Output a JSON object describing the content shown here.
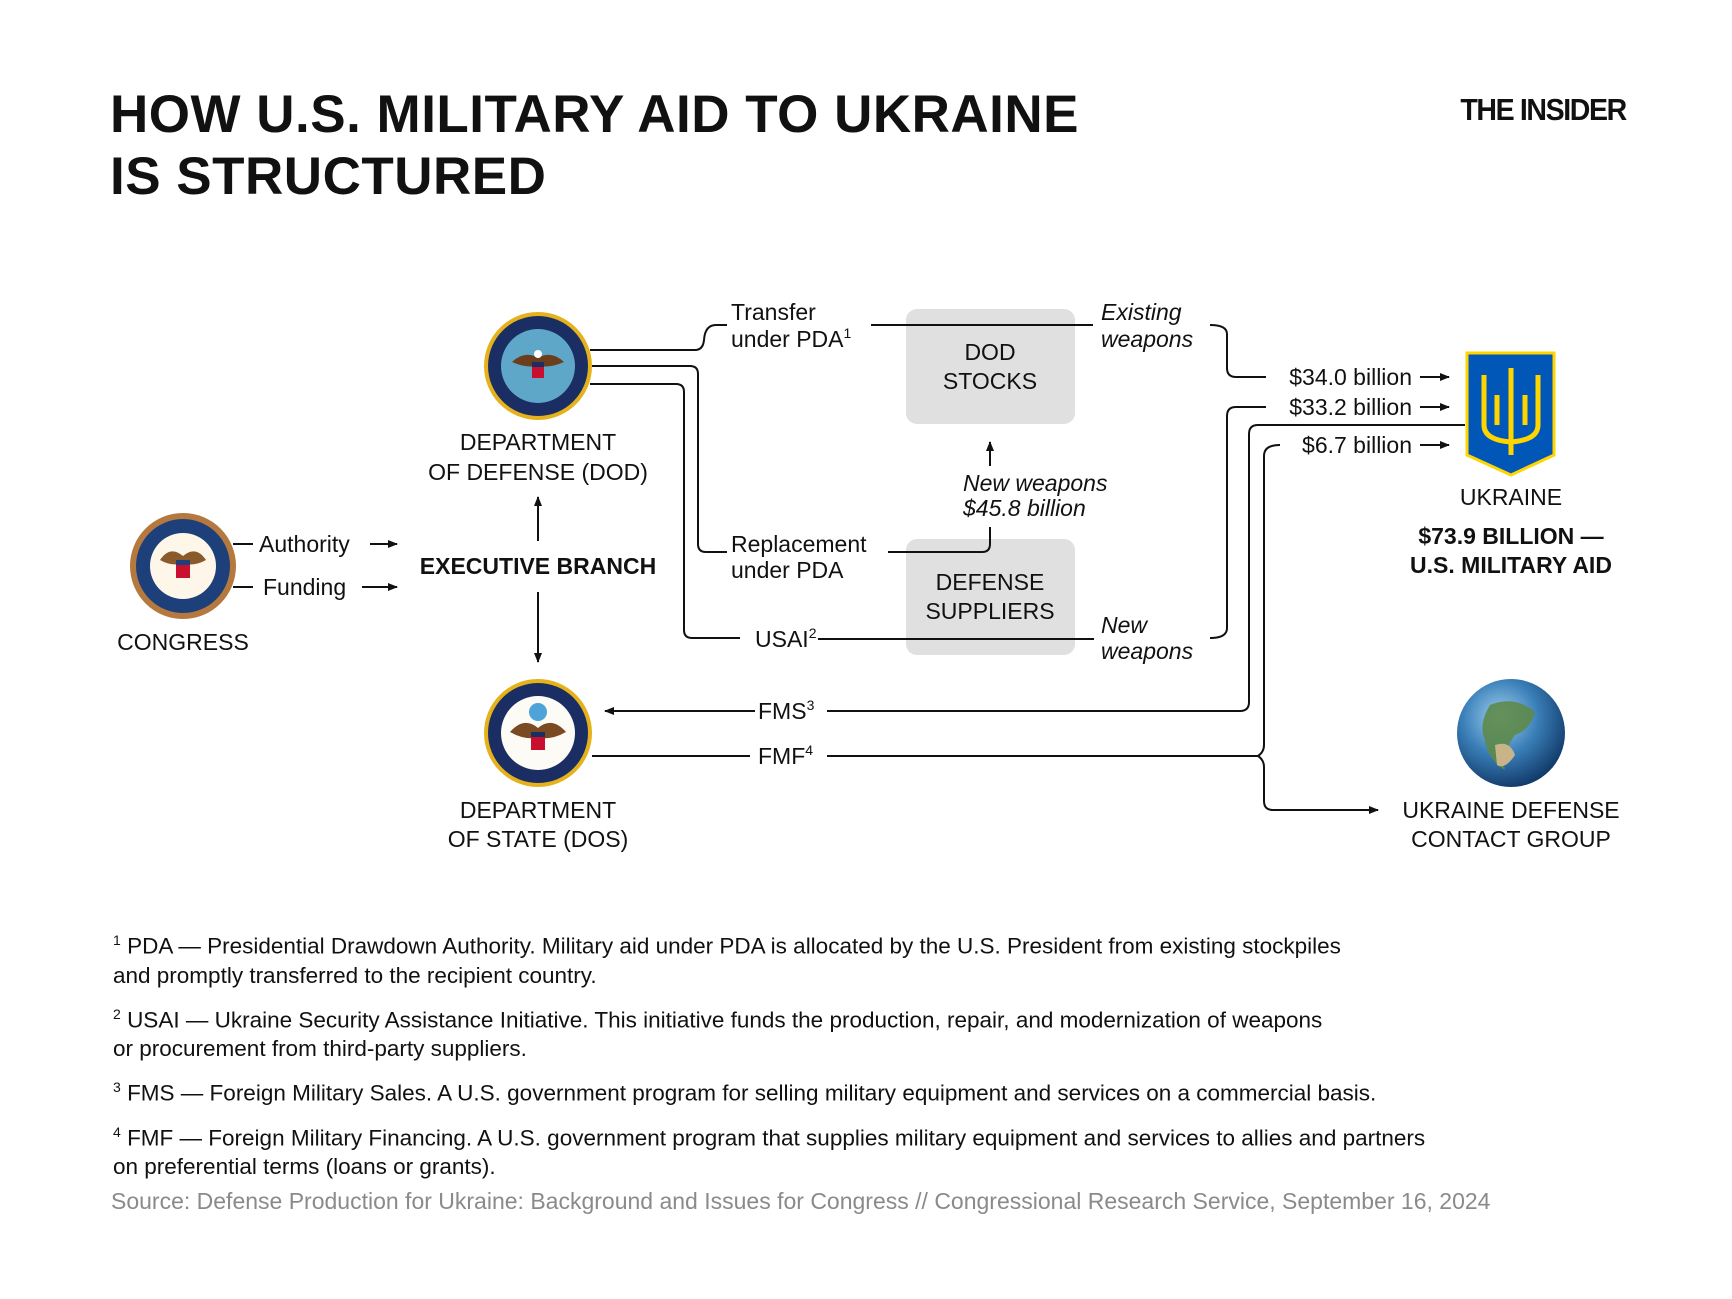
{
  "title": [
    "HOW U.S. MILITARY AID TO UKRAINE",
    "IS STRUCTURED"
  ],
  "logo": "THE INSIDER",
  "nodes": {
    "congress": "CONGRESS",
    "executive": "EXECUTIVE BRANCH",
    "dod": [
      "DEPARTMENT",
      "OF DEFENSE (DOD)"
    ],
    "dos": [
      "DEPARTMENT",
      "OF STATE (DOS)"
    ],
    "dod_stocks": [
      "DOD",
      "STOCKS"
    ],
    "suppliers": [
      "DEFENSE",
      "SUPPLIERS"
    ],
    "ukraine": "UKRAINE",
    "total": [
      "$73.9 BILLION —",
      "U.S. MILITARY AID"
    ],
    "udcg": [
      "UKRAINE DEFENSE",
      "CONTACT GROUP"
    ]
  },
  "edges": {
    "authority": "Authority",
    "funding": "Funding",
    "transfer": [
      "Transfer",
      "under PDA"
    ],
    "transfer_sup": "1",
    "replacement": [
      "Replacement",
      "under PDA"
    ],
    "usai": "USAI",
    "usai_sup": "2",
    "fms": "FMS",
    "fms_sup": "3",
    "fmf": "FMF",
    "fmf_sup": "4",
    "existing": [
      "Existing",
      "weapons"
    ],
    "new": [
      "New",
      "weapons"
    ],
    "new_weapons": [
      "New weapons",
      "$45.8 billion"
    ],
    "amounts": [
      "$34.0 billion",
      "$33.2 billion",
      "$6.7 billion"
    ]
  },
  "footnotes": [
    {
      "num": "1",
      "text": "PDA — Presidential Drawdown Authority. Military aid under PDA is allocated by the U.S. President from existing stockpiles",
      "text2": "and promptly transferred to the recipient country."
    },
    {
      "num": "2",
      "text": "USAI — Ukraine Security Assistance Initiative. This initiative funds the production, repair, and modernization of weapons",
      "text2": "or procurement from third-party suppliers."
    },
    {
      "num": "3",
      "text": "FMS — Foreign Military Sales. A U.S. government program for selling military equipment and services on a commercial basis.",
      "text2": ""
    },
    {
      "num": "4",
      "text": "FMF — Foreign Military Financing. A U.S. government program that supplies military equipment and services to allies and partners",
      "text2": "on preferential terms (loans or grants)."
    }
  ],
  "source": "Source: Defense Production for Ukraine: Background and Issues for Congress // Congressional Research Service, September 16, 2024",
  "colors": {
    "box": "#e0e0e0",
    "ukraine_blue": "#0057b7",
    "ukraine_yellow": "#ffd500",
    "source": "#8a8a8a"
  }
}
